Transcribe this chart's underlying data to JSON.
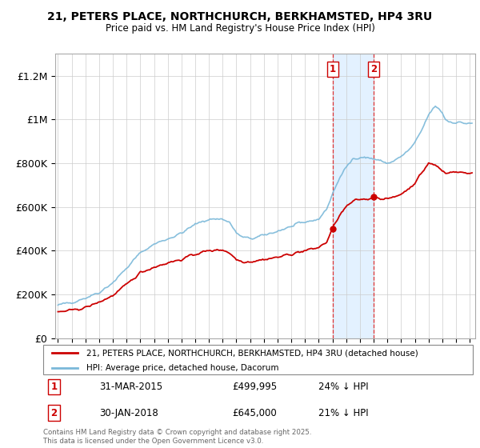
{
  "title_line1": "21, PETERS PLACE, NORTHCHURCH, BERKHAMSTED, HP4 3RU",
  "title_line2": "Price paid vs. HM Land Registry's House Price Index (HPI)",
  "background_color": "#ffffff",
  "grid_color": "#cccccc",
  "hpi_color": "#7ab8d9",
  "sale_color": "#cc0000",
  "shade_color": "#ddeeff",
  "sale1_idx": 240,
  "sale1_price": 499995,
  "sale1_date_str": "31-MAR-2015",
  "sale1_pct": "24% ↓ HPI",
  "sale2_idx": 276,
  "sale2_price": 645000,
  "sale2_date_str": "30-JAN-2018",
  "sale2_pct": "21% ↓ HPI",
  "ylim": [
    0,
    1300000
  ],
  "yticks": [
    0,
    200000,
    400000,
    600000,
    800000,
    1000000,
    1200000
  ],
  "ytick_labels": [
    "£0",
    "£200K",
    "£400K",
    "£600K",
    "£800K",
    "£1M",
    "£1.2M"
  ],
  "legend_label1": "21, PETERS PLACE, NORTHCHURCH, BERKHAMSTED, HP4 3RU (detached house)",
  "legend_label2": "HPI: Average price, detached house, Dacorum",
  "footer": "Contains HM Land Registry data © Crown copyright and database right 2025.\nThis data is licensed under the Open Government Licence v3.0.",
  "start_year": 1995,
  "end_year": 2025
}
